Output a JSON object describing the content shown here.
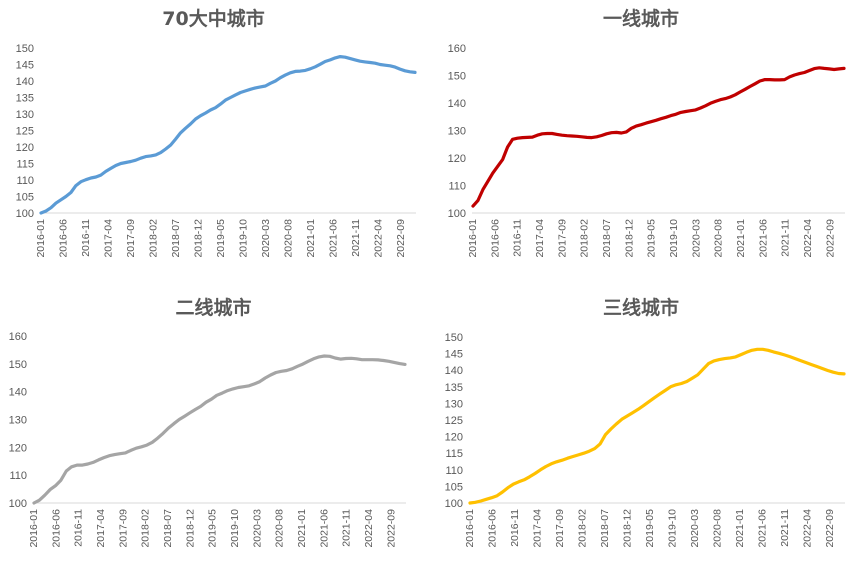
{
  "chart_data": [
    {
      "type": "line",
      "title": "70大中城市",
      "color": "#5B9BD5",
      "ylim": [
        100,
        150
      ],
      "yticks": [
        100,
        105,
        110,
        115,
        120,
        125,
        130,
        135,
        140,
        145,
        150
      ],
      "x_ticks": [
        "2016-01",
        "2016-06",
        "2016-11",
        "2017-04",
        "2017-09",
        "2018-02",
        "2018-07",
        "2018-12",
        "2019-05",
        "2019-10",
        "2020-03",
        "2020-08",
        "2021-01",
        "2021-06",
        "2021-11",
        "2022-04",
        "2022-09"
      ],
      "series": [
        {
          "values": [
            100.0,
            100.6,
            101.6,
            103.0,
            104.0,
            105.0,
            106.2,
            108.3,
            109.5,
            110.1,
            110.6,
            110.9,
            111.5,
            112.6,
            113.5,
            114.4,
            115.0,
            115.3,
            115.6,
            116.0,
            116.6,
            117.1,
            117.3,
            117.6,
            118.3,
            119.4,
            120.6,
            122.4,
            124.3,
            125.7,
            127.0,
            128.5,
            129.5,
            130.3,
            131.2,
            131.9,
            133.0,
            134.2,
            135.0,
            135.8,
            136.5,
            137.0,
            137.5,
            137.9,
            138.2,
            138.5,
            139.3,
            140.0,
            141.0,
            141.8,
            142.5,
            142.9,
            143.0,
            143.2,
            143.7,
            144.3,
            145.1,
            145.9,
            146.4,
            147.0,
            147.4,
            147.2,
            146.8,
            146.4,
            146.0,
            145.8,
            145.6,
            145.4,
            145.0,
            144.8,
            144.6,
            144.2,
            143.6,
            143.1,
            142.8,
            142.6
          ]
        }
      ]
    },
    {
      "type": "line",
      "title": "一线城市",
      "color": "#C00000",
      "ylim": [
        100,
        160
      ],
      "yticks": [
        100,
        110,
        120,
        130,
        140,
        150,
        160
      ],
      "x_ticks": [
        "2016-01",
        "2016-06",
        "2016-11",
        "2017-04",
        "2017-09",
        "2018-02",
        "2018-07",
        "2018-12",
        "2019-05",
        "2019-10",
        "2020-03",
        "2020-08",
        "2021-01",
        "2021-06",
        "2021-11",
        "2022-04",
        "2022-09"
      ],
      "series": [
        {
          "values": [
            102.5,
            104.5,
            108.5,
            111.5,
            114.5,
            117.0,
            119.5,
            124.0,
            126.8,
            127.2,
            127.4,
            127.5,
            127.6,
            128.3,
            128.8,
            128.9,
            128.9,
            128.6,
            128.3,
            128.1,
            128.0,
            127.9,
            127.7,
            127.5,
            127.4,
            127.7,
            128.2,
            128.8,
            129.2,
            129.3,
            129.1,
            129.5,
            130.8,
            131.6,
            132.1,
            132.7,
            133.2,
            133.7,
            134.3,
            134.8,
            135.4,
            135.9,
            136.6,
            136.9,
            137.2,
            137.5,
            138.2,
            139.0,
            139.9,
            140.6,
            141.2,
            141.6,
            142.2,
            143.0,
            144.0,
            145.0,
            146.0,
            147.0,
            148.0,
            148.5,
            148.5,
            148.4,
            148.4,
            148.5,
            149.5,
            150.2,
            150.7,
            151.1,
            151.8,
            152.5,
            152.8,
            152.6,
            152.4,
            152.2,
            152.4,
            152.6
          ]
        }
      ]
    },
    {
      "type": "line",
      "title": "二线城市",
      "color": "#A5A5A5",
      "ylim": [
        100,
        160
      ],
      "yticks": [
        100,
        110,
        120,
        130,
        140,
        150,
        160
      ],
      "x_ticks": [
        "2016-01",
        "2016-06",
        "2016-11",
        "2017-04",
        "2017-09",
        "2018-02",
        "2018-07",
        "2018-12",
        "2019-05",
        "2019-10",
        "2020-03",
        "2020-08",
        "2021-01",
        "2021-06",
        "2021-11",
        "2022-04",
        "2022-09"
      ],
      "series": [
        {
          "values": [
            100.0,
            101.0,
            102.8,
            104.8,
            106.2,
            108.2,
            111.5,
            113.0,
            113.6,
            113.6,
            114.0,
            114.6,
            115.5,
            116.3,
            117.0,
            117.4,
            117.7,
            118.0,
            118.9,
            119.7,
            120.2,
            120.8,
            121.8,
            123.3,
            125.0,
            126.9,
            128.5,
            130.0,
            131.2,
            132.4,
            133.6,
            134.7,
            136.2,
            137.3,
            138.7,
            139.5,
            140.4,
            141.0,
            141.5,
            141.8,
            142.1,
            142.8,
            143.6,
            144.9,
            146.0,
            146.9,
            147.3,
            147.6,
            148.2,
            149.1,
            149.9,
            150.9,
            151.8,
            152.5,
            152.8,
            152.7,
            152.1,
            151.7,
            151.9,
            152.0,
            151.8,
            151.5,
            151.5,
            151.5,
            151.4,
            151.2,
            150.9,
            150.5,
            150.1,
            149.8
          ]
        }
      ]
    },
    {
      "type": "line",
      "title": "三线城市",
      "color": "#FFC000",
      "ylim": [
        100,
        150
      ],
      "yticks": [
        100,
        105,
        110,
        115,
        120,
        125,
        130,
        135,
        140,
        145,
        150
      ],
      "x_ticks": [
        "2016-01",
        "2016-06",
        "2016-11",
        "2017-04",
        "2017-09",
        "2018-02",
        "2018-07",
        "2018-12",
        "2019-05",
        "2019-10",
        "2020-03",
        "2020-08",
        "2021-01",
        "2021-06",
        "2021-11",
        "2022-04",
        "2022-09"
      ],
      "series": [
        {
          "values": [
            100.0,
            100.2,
            100.6,
            101.1,
            101.6,
            102.2,
            103.3,
            104.6,
            105.7,
            106.4,
            107.0,
            107.9,
            108.9,
            110.0,
            111.0,
            111.8,
            112.4,
            112.9,
            113.5,
            114.0,
            114.5,
            115.0,
            115.6,
            116.4,
            117.8,
            120.6,
            122.3,
            123.8,
            125.2,
            126.2,
            127.2,
            128.2,
            129.3,
            130.5,
            131.7,
            132.8,
            133.9,
            135.0,
            135.6,
            136.0,
            136.6,
            137.6,
            138.6,
            140.3,
            142.0,
            142.8,
            143.2,
            143.5,
            143.7,
            144.0,
            144.7,
            145.4,
            146.0,
            146.3,
            146.3,
            146.0,
            145.5,
            145.1,
            144.6,
            144.1,
            143.5,
            142.9,
            142.3,
            141.7,
            141.1,
            140.5,
            139.9,
            139.4,
            139.0,
            138.9
          ]
        }
      ]
    }
  ]
}
